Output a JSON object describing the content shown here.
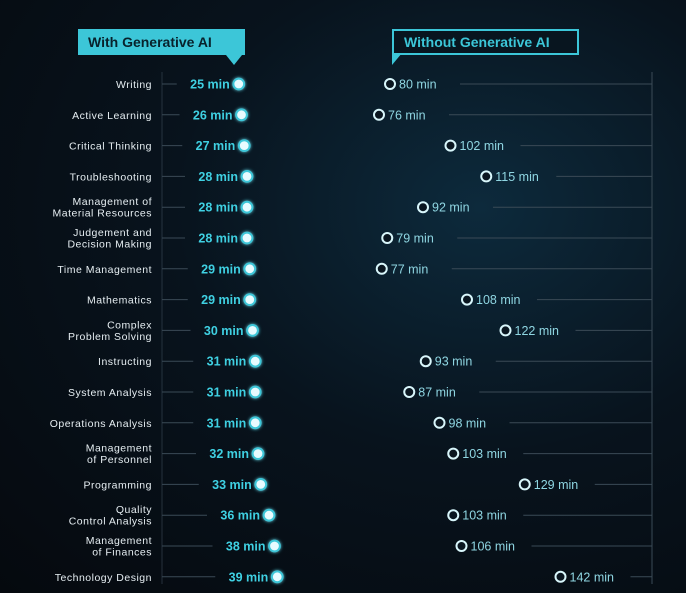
{
  "legend": {
    "with_label": "With Generative AI",
    "without_label": "Without Generative AI"
  },
  "colors": {
    "accent": "#3cc6d8",
    "with_value": "#3fd0e2",
    "without_value": "#8fd6e2",
    "grid": "#3a4a56",
    "label": "#e6eef2"
  },
  "chart_data": {
    "type": "dumbbell",
    "title": "",
    "xlabel": "",
    "ylabel": "",
    "unit": "min",
    "categories": [
      [
        "Writing"
      ],
      [
        "Active Learning"
      ],
      [
        "Critical Thinking"
      ],
      [
        "Troubleshooting"
      ],
      [
        "Management of",
        "Material Resources"
      ],
      [
        "Judgement and",
        "Decision Making"
      ],
      [
        "Time Management"
      ],
      [
        "Mathematics"
      ],
      [
        "Complex",
        "Problem Solving"
      ],
      [
        "Instructing"
      ],
      [
        "System Analysis"
      ],
      [
        "Operations Analysis"
      ],
      [
        "Management",
        "of Personnel"
      ],
      [
        "Programming"
      ],
      [
        "Quality",
        "Control Analysis"
      ],
      [
        "Management",
        "of Finances"
      ],
      [
        "Technology Design"
      ]
    ],
    "series": [
      {
        "name": "With Generative AI",
        "values": [
          25,
          26,
          27,
          28,
          28,
          28,
          29,
          29,
          30,
          31,
          31,
          31,
          32,
          33,
          36,
          38,
          39
        ]
      },
      {
        "name": "Without Generative AI",
        "values": [
          80,
          76,
          102,
          115,
          92,
          79,
          77,
          108,
          122,
          93,
          87,
          98,
          103,
          129,
          103,
          106,
          142
        ]
      }
    ]
  }
}
